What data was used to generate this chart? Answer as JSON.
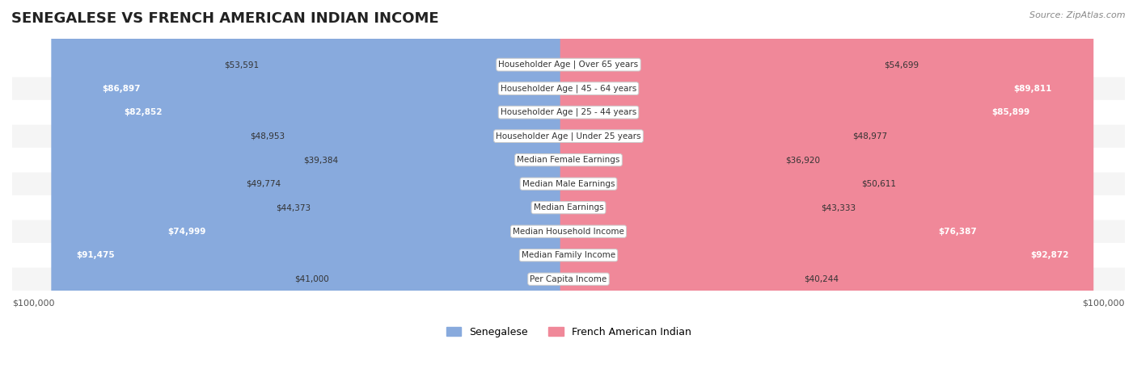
{
  "title": "SENEGALESE VS FRENCH AMERICAN INDIAN INCOME",
  "source": "Source: ZipAtlas.com",
  "categories": [
    "Per Capita Income",
    "Median Family Income",
    "Median Household Income",
    "Median Earnings",
    "Median Male Earnings",
    "Median Female Earnings",
    "Householder Age | Under 25 years",
    "Householder Age | 25 - 44 years",
    "Householder Age | 45 - 64 years",
    "Householder Age | Over 65 years"
  ],
  "senegalese": [
    41000,
    91475,
    74999,
    44373,
    49774,
    39384,
    48953,
    82852,
    86897,
    53591
  ],
  "french_american_indian": [
    40244,
    92872,
    76387,
    43333,
    50611,
    36920,
    48977,
    85899,
    89811,
    54699
  ],
  "senegalese_labels": [
    "$41,000",
    "$91,475",
    "$74,999",
    "$44,373",
    "$49,774",
    "$39,384",
    "$48,953",
    "$82,852",
    "$86,897",
    "$53,591"
  ],
  "french_labels": [
    "$40,244",
    "$92,872",
    "$76,387",
    "$43,333",
    "$50,611",
    "$36,920",
    "$48,977",
    "$85,899",
    "$89,811",
    "$54,699"
  ],
  "max_val": 100000,
  "color_senegalese": "#88aadd",
  "color_french": "#f08899",
  "color_senegalese_dark": "#5577cc",
  "color_french_dark": "#ee5577",
  "legend_senegalese": "Senegalese",
  "legend_french": "French American Indian",
  "row_bg_light": "#f5f5f5",
  "row_bg_white": "#ffffff"
}
